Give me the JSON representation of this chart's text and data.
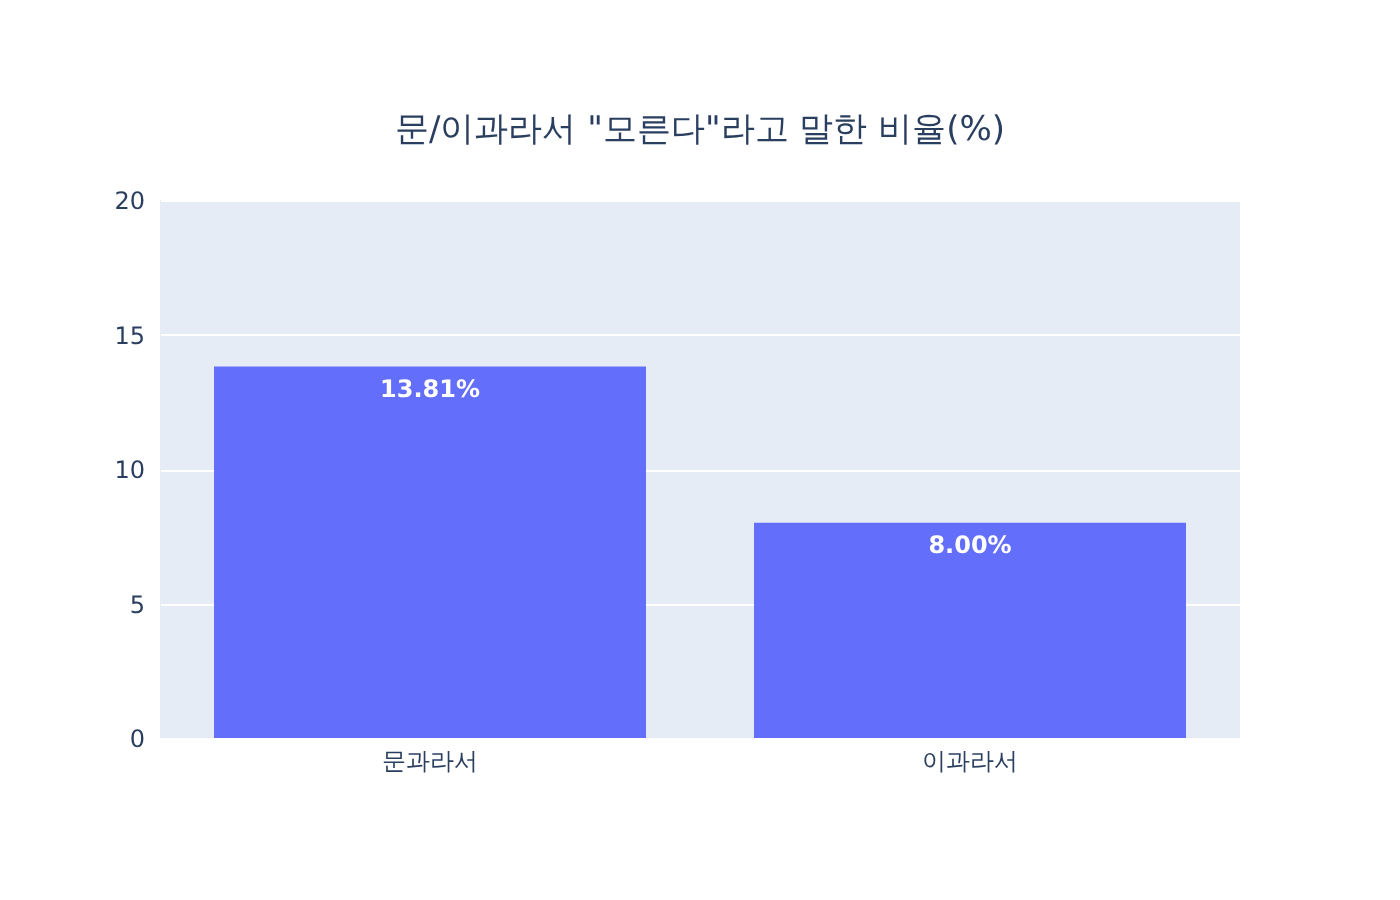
{
  "chart_data": {
    "type": "bar",
    "title": "문/이과라서 \"모른다\"라고 말한 비율(%)",
    "categories": [
      "문과라서",
      "이과라서"
    ],
    "values": [
      13.81,
      8.0
    ],
    "value_labels": [
      "13.81%",
      "8.00%"
    ],
    "color": "#636efa",
    "ylim": [
      0,
      20
    ],
    "yticks": [
      0,
      5,
      10,
      15,
      20
    ],
    "grid": "y"
  }
}
